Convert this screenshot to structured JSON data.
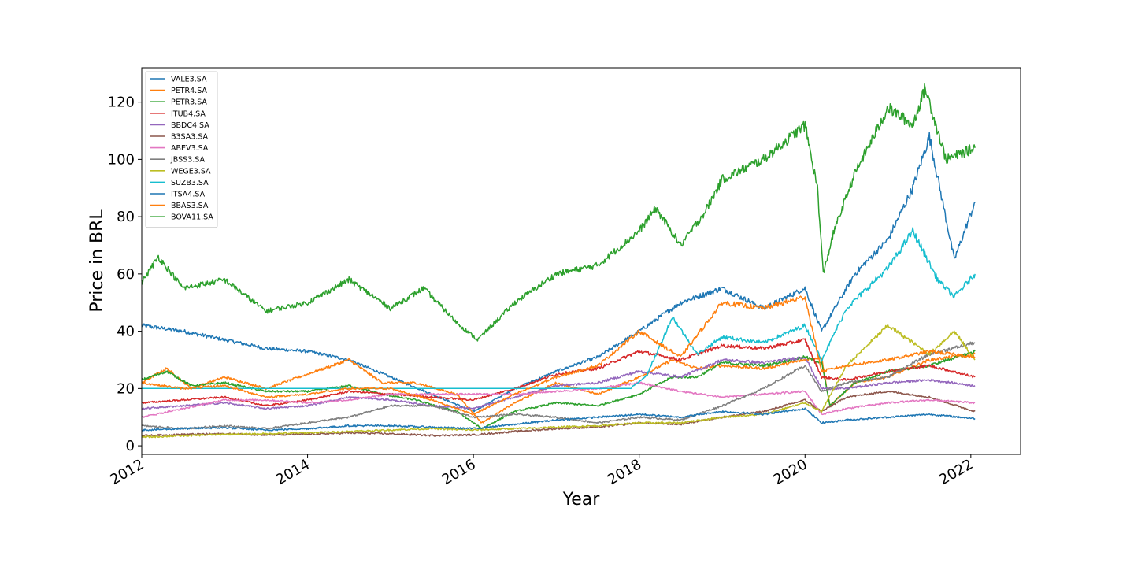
{
  "chart_data": {
    "type": "line",
    "title": "",
    "xlabel": "Year",
    "ylabel": "Price in BRL",
    "xlim": [
      2012.0,
      2022.6
    ],
    "ylim": [
      -3,
      132
    ],
    "x_ticks": [
      2012,
      2014,
      2016,
      2018,
      2020,
      2022
    ],
    "x_tick_labels": [
      "2012",
      "2014",
      "2016",
      "2018",
      "2020",
      "2022"
    ],
    "y_ticks": [
      0,
      20,
      40,
      60,
      80,
      100,
      120
    ],
    "y_tick_labels": [
      "0",
      "20",
      "40",
      "60",
      "80",
      "100",
      "120"
    ],
    "grid": false,
    "legend_position": "top-left",
    "series": [
      {
        "name": "VALE3.SA",
        "color": "#1f77b4",
        "x": [
          2012,
          2012.5,
          2013,
          2013.5,
          2014,
          2014.5,
          2015,
          2015.5,
          2016,
          2016.5,
          2017,
          2017.5,
          2018,
          2018.5,
          2019,
          2019.5,
          2020,
          2020.2,
          2020.3,
          2020.6,
          2021,
          2021.3,
          2021.5,
          2021.8,
          2022.05
        ],
        "y": [
          42,
          40,
          37,
          34,
          33,
          30,
          24,
          18,
          12,
          20,
          26,
          31,
          40,
          50,
          55,
          48,
          55,
          40,
          45,
          60,
          72,
          90,
          108,
          65,
          85
        ]
      },
      {
        "name": "PETR4.SA",
        "color": "#ff7f0e",
        "x": [
          2012,
          2012.3,
          2012.6,
          2013,
          2013.5,
          2014,
          2014.5,
          2014.9,
          2015.3,
          2015.8,
          2016.1,
          2016.5,
          2017,
          2017.5,
          2018,
          2018.4,
          2018.7,
          2019,
          2019.5,
          2020,
          2020.2,
          2020.3,
          2020.6,
          2021,
          2021.5,
          2022.05
        ],
        "y": [
          22,
          27,
          20,
          24,
          20,
          25,
          30,
          22,
          22,
          18,
          8,
          15,
          22,
          18,
          24,
          30,
          27,
          28,
          27,
          30,
          31,
          14,
          22,
          24,
          30,
          32
        ]
      },
      {
        "name": "PETR3.SA",
        "color": "#2ca02c",
        "x": [
          2012,
          2012.3,
          2012.6,
          2013,
          2013.5,
          2014,
          2014.5,
          2014.9,
          2015.3,
          2015.8,
          2016.1,
          2016.5,
          2017,
          2017.5,
          2018,
          2018.4,
          2018.7,
          2019,
          2019.5,
          2020,
          2020.2,
          2020.3,
          2020.6,
          2021,
          2021.5,
          2022.05
        ],
        "y": [
          23,
          26,
          21,
          22,
          19,
          19,
          21,
          18,
          16,
          12,
          6,
          12,
          15,
          14,
          18,
          24,
          24,
          29,
          28,
          31,
          29,
          14,
          22,
          26,
          28,
          33
        ]
      },
      {
        "name": "ITUB4.SA",
        "color": "#d62728",
        "x": [
          2012,
          2012.5,
          2013,
          2013.5,
          2014,
          2014.5,
          2015,
          2015.5,
          2016,
          2016.5,
          2017,
          2017.5,
          2018,
          2018.5,
          2019,
          2019.5,
          2020,
          2020.2,
          2020.5,
          2021,
          2021.5,
          2022.05
        ],
        "y": [
          15,
          16,
          17,
          14,
          16,
          19,
          18,
          17,
          16,
          20,
          25,
          27,
          33,
          30,
          35,
          34,
          37,
          24,
          23,
          26,
          28,
          24
        ]
      },
      {
        "name": "BBDC4.SA",
        "color": "#9467bd",
        "x": [
          2012,
          2012.5,
          2013,
          2013.5,
          2014,
          2014.5,
          2015,
          2015.5,
          2016,
          2016.5,
          2017,
          2017.5,
          2018,
          2018.5,
          2019,
          2019.5,
          2020,
          2020.2,
          2020.5,
          2021,
          2021.5,
          2022.05
        ],
        "y": [
          13,
          14,
          15,
          13,
          14,
          17,
          16,
          14,
          13,
          17,
          21,
          22,
          26,
          24,
          30,
          29,
          31,
          20,
          20,
          22,
          23,
          21
        ]
      },
      {
        "name": "B3SA3.SA",
        "color": "#8c564b",
        "x": [
          2012,
          2012.5,
          2013,
          2013.5,
          2014,
          2014.5,
          2015,
          2015.5,
          2016,
          2016.5,
          2017,
          2017.5,
          2018,
          2018.5,
          2019,
          2019.5,
          2020,
          2020.2,
          2020.5,
          2021,
          2021.5,
          2022.05
        ],
        "y": [
          3.5,
          4,
          4.2,
          3.8,
          4,
          4.5,
          4.2,
          3.6,
          3.8,
          5,
          6,
          6.5,
          8,
          7.5,
          10,
          12,
          16,
          12,
          17,
          19,
          17,
          12
        ]
      },
      {
        "name": "ABEV3.SA",
        "color": "#e377c2",
        "x": [
          2012,
          2012.5,
          2013,
          2013.5,
          2014,
          2014.5,
          2015,
          2015.5,
          2016,
          2016.5,
          2017,
          2017.5,
          2018,
          2018.5,
          2019,
          2019.5,
          2020,
          2020.2,
          2020.5,
          2021,
          2021.5,
          2022.05
        ],
        "y": [
          10,
          13,
          16,
          16,
          15,
          16,
          18,
          18,
          18,
          18,
          19,
          20,
          22,
          19,
          17,
          18,
          19,
          11,
          13,
          15,
          16,
          15
        ]
      },
      {
        "name": "JBSS3.SA",
        "color": "#7f7f7f",
        "x": [
          2012,
          2012.5,
          2013,
          2013.5,
          2014,
          2014.5,
          2015,
          2015.5,
          2016,
          2016.5,
          2017,
          2017.5,
          2018,
          2018.5,
          2019,
          2019.5,
          2020,
          2020.2,
          2020.5,
          2021,
          2021.5,
          2022.05
        ],
        "y": [
          7,
          6,
          7,
          6,
          8,
          10,
          14,
          14,
          10,
          11,
          10,
          8,
          10,
          9,
          14,
          20,
          28,
          19,
          22,
          24,
          32,
          36
        ]
      },
      {
        "name": "WEGE3.SA",
        "color": "#bcbd22",
        "x": [
          2012,
          2012.5,
          2013,
          2013.5,
          2014,
          2014.5,
          2015,
          2015.5,
          2016,
          2016.5,
          2017,
          2017.5,
          2018,
          2018.5,
          2019,
          2019.5,
          2020,
          2020.2,
          2020.5,
          2021,
          2021.5,
          2021.8,
          2022.05
        ],
        "y": [
          3,
          3.5,
          4,
          4.2,
          4.5,
          5,
          5.5,
          6,
          5.5,
          6,
          6.5,
          7,
          8,
          8,
          10,
          11,
          15,
          12,
          28,
          42,
          32,
          40,
          30
        ]
      },
      {
        "name": "SUZB3.SA",
        "color": "#17becf",
        "x": [
          2012,
          2013,
          2014,
          2015,
          2016,
          2017,
          2017.9,
          2018.1,
          2018.4,
          2018.7,
          2019,
          2019.5,
          2020,
          2020.2,
          2020.5,
          2021,
          2021.3,
          2021.6,
          2021.8,
          2022.05
        ],
        "y": [
          20,
          20,
          20,
          20,
          20,
          20,
          20,
          25,
          45,
          32,
          38,
          36,
          42,
          30,
          48,
          62,
          75,
          58,
          52,
          60
        ]
      },
      {
        "name": "ITSA4.SA",
        "color": "#1f77b4",
        "x": [
          2012,
          2012.5,
          2013,
          2013.5,
          2014,
          2014.5,
          2015,
          2015.5,
          2016,
          2016.5,
          2017,
          2017.5,
          2018,
          2018.5,
          2019,
          2019.5,
          2020,
          2020.2,
          2020.5,
          2021,
          2021.5,
          2022.05
        ],
        "y": [
          5.5,
          6,
          6.3,
          5.5,
          6,
          7,
          7,
          6.5,
          6,
          7.5,
          9,
          10,
          11,
          10,
          12,
          11,
          13,
          8,
          9,
          10,
          11,
          9.5
        ]
      },
      {
        "name": "BBAS3.SA",
        "color": "#ff7f0e",
        "x": [
          2012,
          2012.5,
          2013,
          2013.5,
          2014,
          2014.5,
          2015,
          2015.5,
          2016,
          2016.5,
          2017,
          2017.5,
          2018,
          2018.5,
          2019,
          2019.5,
          2020,
          2020.2,
          2020.5,
          2021,
          2021.5,
          2022.05
        ],
        "y": [
          22,
          20,
          21,
          17,
          18,
          20,
          20,
          16,
          11,
          18,
          24,
          28,
          40,
          31,
          50,
          48,
          52,
          26,
          28,
          30,
          33,
          31
        ]
      },
      {
        "name": "BOVA11.SA",
        "color": "#2ca02c",
        "x": [
          2012,
          2012.2,
          2012.5,
          2013,
          2013.5,
          2014,
          2014.5,
          2015,
          2015.4,
          2015.8,
          2016.05,
          2016.5,
          2017,
          2017.5,
          2018,
          2018.2,
          2018.5,
          2018.8,
          2019,
          2019.5,
          2020,
          2020.15,
          2020.22,
          2020.35,
          2020.6,
          2021,
          2021.3,
          2021.45,
          2021.7,
          2022.05
        ],
        "y": [
          57,
          66,
          55,
          58,
          47,
          50,
          58,
          48,
          55,
          43,
          37,
          50,
          60,
          63,
          75,
          83,
          70,
          82,
          93,
          100,
          112,
          90,
          60,
          75,
          95,
          118,
          112,
          125,
          100,
          104
        ]
      }
    ]
  }
}
